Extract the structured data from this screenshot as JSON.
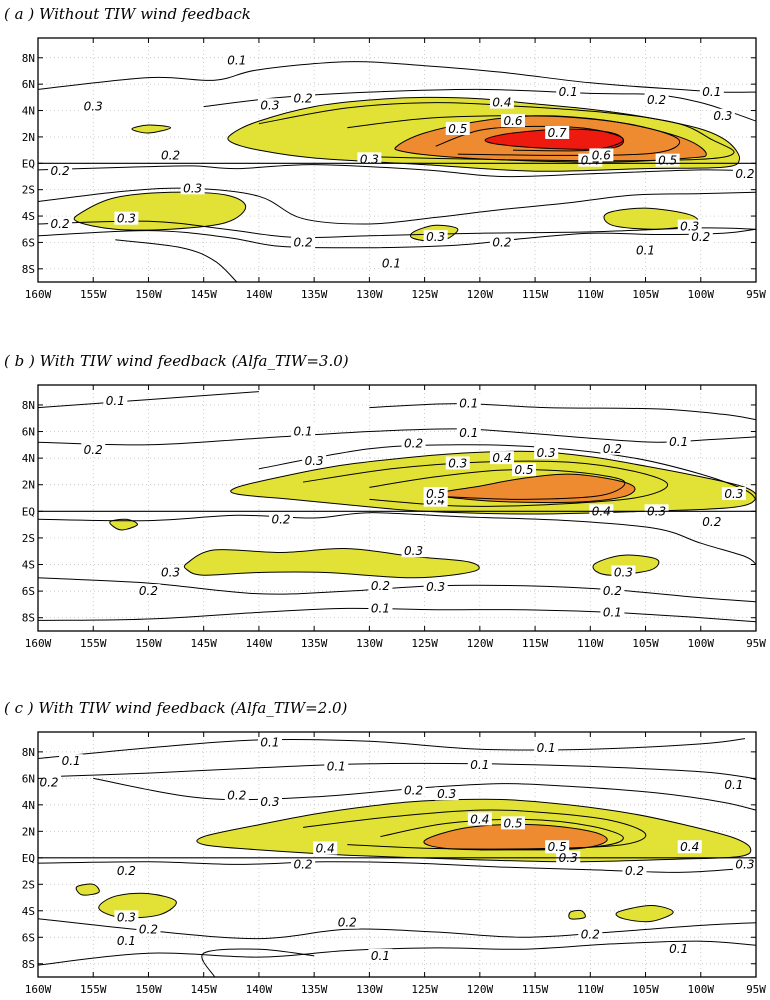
{
  "chart_data": [
    {
      "type": "contour",
      "title": "( a ) Without TIW wind feedback",
      "x_ticks": [
        "160W",
        "155W",
        "150W",
        "145W",
        "140W",
        "135W",
        "130W",
        "125W",
        "120W",
        "115W",
        "110W",
        "105W",
        "100W",
        "95W"
      ],
      "y_ticks": [
        "8N",
        "6N",
        "4N",
        "2N",
        "EQ",
        "2S",
        "4S",
        "6S",
        "8S"
      ],
      "xlim": [
        -160,
        -95
      ],
      "ylim": [
        -9,
        9.5
      ],
      "levels": [
        0.1,
        0.2,
        0.3,
        0.4,
        0.5,
        0.6,
        0.7
      ],
      "shading": {
        "0.3": "#e2e236",
        "0.5": "#ee8a30",
        "0.7": "#ee1a10"
      },
      "filled_regions": [
        {
          "level": 0.3,
          "shape": [
            [
              -142.5,
              2.2
            ],
            [
              -140,
              3.2
            ],
            [
              -135,
              4.3
            ],
            [
              -130,
              4.8
            ],
            [
              -125,
              5.0
            ],
            [
              -120,
              4.9
            ],
            [
              -115,
              4.5
            ],
            [
              -110,
              4.1
            ],
            [
              -105,
              3.5
            ],
            [
              -100,
              2.6
            ],
            [
              -97.5,
              1.6
            ],
            [
              -96.5,
              0.3
            ],
            [
              -98,
              -0.3
            ],
            [
              -105,
              -0.4
            ],
            [
              -115,
              -0.6
            ],
            [
              -125,
              -0.1
            ],
            [
              -135,
              0.4
            ],
            [
              -140,
              1.0
            ],
            [
              -142.5,
              1.6
            ]
          ]
        },
        {
          "level": 0.3,
          "shape": [
            [
              -156,
              -3.7
            ],
            [
              -153,
              -2.6
            ],
            [
              -148,
              -2.2
            ],
            [
              -143,
              -2.4
            ],
            [
              -141.2,
              -3.3
            ],
            [
              -143,
              -4.5
            ],
            [
              -148,
              -5.0
            ],
            [
              -153,
              -5.0
            ],
            [
              -156.5,
              -4.4
            ]
          ]
        },
        {
          "level": 0.3,
          "shape": [
            [
              -151.5,
              2.6
            ],
            [
              -150,
              2.9
            ],
            [
              -148,
              2.7
            ],
            [
              -150,
              2.3
            ]
          ]
        },
        {
          "level": 0.3,
          "shape": [
            [
              -126,
              -5.2
            ],
            [
              -124,
              -4.7
            ],
            [
              -122,
              -5.0
            ],
            [
              -123.5,
              -5.9
            ],
            [
              -126,
              -5.7
            ]
          ]
        },
        {
          "level": 0.3,
          "shape": [
            [
              -108.5,
              -3.8
            ],
            [
              -105,
              -3.4
            ],
            [
              -101,
              -3.9
            ],
            [
              -100.5,
              -4.6
            ],
            [
              -104,
              -5.0
            ],
            [
              -108,
              -4.7
            ]
          ]
        },
        {
          "level": 0.5,
          "shape": [
            [
              -127.5,
              1.3
            ],
            [
              -125,
              2.3
            ],
            [
              -120,
              3.2
            ],
            [
              -115,
              3.6
            ],
            [
              -110,
              3.4
            ],
            [
              -105,
              2.7
            ],
            [
              -101,
              1.7
            ],
            [
              -99.5,
              0.7
            ],
            [
              -101,
              0.4
            ],
            [
              -108,
              0.1
            ],
            [
              -116,
              0.2
            ],
            [
              -123,
              0.5
            ],
            [
              -127,
              0.9
            ]
          ]
        },
        {
          "level": 0.7,
          "shape": [
            [
              -119.5,
              1.8
            ],
            [
              -117,
              2.3
            ],
            [
              -112,
              2.6
            ],
            [
              -108,
              2.3
            ],
            [
              -107,
              1.6
            ],
            [
              -108.5,
              1.1
            ],
            [
              -113,
              1.1
            ],
            [
              -118,
              1.4
            ]
          ]
        }
      ],
      "contour_labels": [
        "0.1",
        "0.1",
        "0.1",
        "0.1",
        "0.1",
        "0.2",
        "0.2",
        "0.2",
        "0.2",
        "0.2",
        "0.2",
        "0.2",
        "0.2",
        "0.2",
        "0.3",
        "0.3",
        "0.3",
        "0.3",
        "0.3",
        "0.3",
        "0.3",
        "0.4",
        "0.4",
        "0.5",
        "0.5",
        "0.6",
        "0.6",
        "0.7"
      ]
    },
    {
      "type": "contour",
      "title": "( b ) With TIW wind feedback (Alfa_TIW=3.0)",
      "x_ticks": [
        "160W",
        "155W",
        "150W",
        "145W",
        "140W",
        "135W",
        "130W",
        "125W",
        "120W",
        "115W",
        "110W",
        "105W",
        "100W",
        "95W"
      ],
      "y_ticks": [
        "8N",
        "6N",
        "4N",
        "2N",
        "EQ",
        "2S",
        "4S",
        "6S",
        "8S"
      ],
      "xlim": [
        -160,
        -95
      ],
      "ylim": [
        -9,
        9.5
      ],
      "levels": [
        0.1,
        0.2,
        0.3,
        0.4,
        0.5
      ],
      "shading": {
        "0.3": "#e2e236",
        "0.5": "#ee8a30"
      },
      "filled_regions": [
        {
          "level": 0.3,
          "shape": [
            [
              -142,
              1.8
            ],
            [
              -138,
              2.6
            ],
            [
              -133,
              3.4
            ],
            [
              -127,
              4.0
            ],
            [
              -121,
              4.4
            ],
            [
              -115,
              4.5
            ],
            [
              -110,
              4.1
            ],
            [
              -105,
              3.4
            ],
            [
              -100,
              2.6
            ],
            [
              -96,
              1.8
            ],
            [
              -95,
              1.0
            ],
            [
              -97,
              0.3
            ],
            [
              -105,
              0.0
            ],
            [
              -115,
              -0.2
            ],
            [
              -125,
              0.0
            ],
            [
              -132,
              0.5
            ],
            [
              -137,
              0.9
            ],
            [
              -142,
              1.3
            ]
          ]
        },
        {
          "level": 0.3,
          "shape": [
            [
              -146.5,
              -3.9
            ],
            [
              -144,
              -2.9
            ],
            [
              -138,
              -3.1
            ],
            [
              -132,
              -2.8
            ],
            [
              -126,
              -3.4
            ],
            [
              -121,
              -3.8
            ],
            [
              -120.5,
              -4.5
            ],
            [
              -126,
              -5.0
            ],
            [
              -134,
              -4.6
            ],
            [
              -140,
              -4.6
            ],
            [
              -145,
              -4.8
            ],
            [
              -146.5,
              -4.4
            ]
          ]
        },
        {
          "level": 0.3,
          "shape": [
            [
              -153.5,
              -0.8
            ],
            [
              -152,
              -0.6
            ],
            [
              -151,
              -1.0
            ],
            [
              -152.5,
              -1.4
            ]
          ]
        },
        {
          "level": 0.3,
          "shape": [
            [
              -109.5,
              -3.9
            ],
            [
              -107,
              -3.3
            ],
            [
              -104,
              -3.6
            ],
            [
              -104.5,
              -4.4
            ],
            [
              -108,
              -4.8
            ],
            [
              -109.5,
              -4.5
            ]
          ]
        },
        {
          "level": 0.5,
          "shape": [
            [
              -124,
              1.3
            ],
            [
              -120,
              1.9
            ],
            [
              -116,
              2.5
            ],
            [
              -112,
              2.8
            ],
            [
              -108,
              2.4
            ],
            [
              -106,
              1.8
            ],
            [
              -107,
              1.1
            ],
            [
              -111,
              0.7
            ],
            [
              -117,
              0.7
            ],
            [
              -121,
              0.9
            ]
          ]
        }
      ],
      "contour_labels": [
        "0.1",
        "0.1",
        "0.1",
        "0.1",
        "0.1",
        "0.1",
        "0.2",
        "0.2",
        "0.2",
        "0.2",
        "0.2",
        "0.3",
        "0.3",
        "0.3",
        "0.3",
        "0.3",
        "0.3",
        "0.3",
        "0.4",
        "0.4",
        "0.4",
        "0.5",
        "0.5"
      ]
    },
    {
      "type": "contour",
      "title": "( c ) With TIW wind feedback (Alfa_TIW=2.0)",
      "x_ticks": [
        "160W",
        "155W",
        "150W",
        "145W",
        "140W",
        "135W",
        "130W",
        "125W",
        "120W",
        "115W",
        "110W",
        "105W",
        "100W",
        "95W"
      ],
      "y_ticks": [
        "8N",
        "6N",
        "4N",
        "2N",
        "EQ",
        "2S",
        "4S",
        "6S",
        "8S"
      ],
      "xlim": [
        -160,
        -95
      ],
      "ylim": [
        -9,
        9.5
      ],
      "levels": [
        0.1,
        0.2,
        0.3,
        0.4,
        0.5
      ],
      "shading": {
        "0.3": "#e2e236",
        "0.5": "#ee8a30"
      },
      "filled_regions": [
        {
          "level": 0.3,
          "shape": [
            [
              -145,
              1.6
            ],
            [
              -140,
              2.5
            ],
            [
              -135,
              3.3
            ],
            [
              -130,
              3.9
            ],
            [
              -125,
              4.3
            ],
            [
              -118,
              4.4
            ],
            [
              -112,
              4.0
            ],
            [
              -106,
              3.3
            ],
            [
              -101,
              2.4
            ],
            [
              -97,
              1.5
            ],
            [
              -95.5,
              0.7
            ],
            [
              -96.5,
              0.1
            ],
            [
              -102,
              -0.1
            ],
            [
              -112,
              -0.3
            ],
            [
              -122,
              -0.1
            ],
            [
              -132,
              0.2
            ],
            [
              -140,
              0.6
            ],
            [
              -145,
              1.0
            ]
          ]
        },
        {
          "level": 0.3,
          "shape": [
            [
              -154.5,
              -3.8
            ],
            [
              -153,
              -2.9
            ],
            [
              -150,
              -2.7
            ],
            [
              -147.5,
              -3.3
            ],
            [
              -149,
              -4.3
            ],
            [
              -152.5,
              -4.5
            ]
          ]
        },
        {
          "level": 0.3,
          "shape": [
            [
              -156.5,
              -2.2
            ],
            [
              -155,
              -2.0
            ],
            [
              -154.5,
              -2.6
            ],
            [
              -156,
              -2.8
            ]
          ]
        },
        {
          "level": 0.3,
          "shape": [
            [
              -107.5,
              -4.1
            ],
            [
              -104.5,
              -3.6
            ],
            [
              -102.5,
              -4.1
            ],
            [
              -104.5,
              -4.8
            ],
            [
              -107,
              -4.6
            ]
          ]
        },
        {
          "level": 0.3,
          "shape": [
            [
              -111.8,
              -4.1
            ],
            [
              -110.8,
              -4.0
            ],
            [
              -110.5,
              -4.5
            ],
            [
              -111.8,
              -4.6
            ]
          ]
        },
        {
          "level": 0.5,
          "shape": [
            [
              -125,
              1.3
            ],
            [
              -121,
              2.3
            ],
            [
              -115,
              2.5
            ],
            [
              -110,
              2.0
            ],
            [
              -108.5,
              1.3
            ],
            [
              -111,
              0.7
            ],
            [
              -117,
              0.6
            ],
            [
              -123,
              0.7
            ]
          ]
        }
      ],
      "contour_labels": [
        "0.1",
        "0.1",
        "0.1",
        "0.1",
        "0.1",
        "0.1",
        "0.1",
        "0.1",
        "0.1",
        "0.2",
        "0.2",
        "0.2",
        "0.2",
        "0.2",
        "0.2",
        "0.2",
        "0.2",
        "0.3",
        "0.3",
        "0.3",
        "0.3",
        "0.3",
        "0.4",
        "0.4",
        "0.5",
        "0.5"
      ]
    }
  ]
}
